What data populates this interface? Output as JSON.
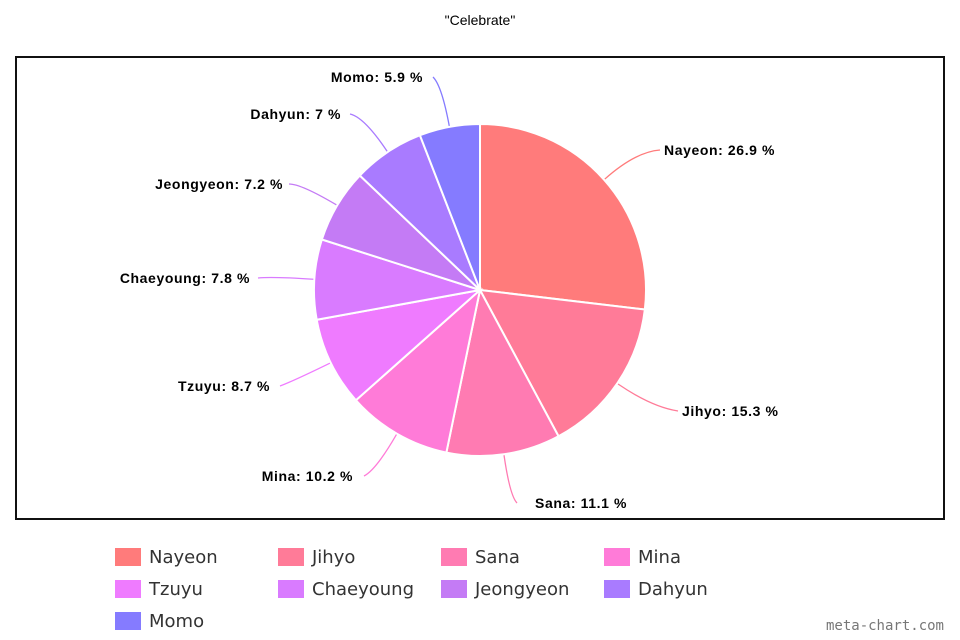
{
  "chart_data": {
    "type": "pie",
    "title": "\"Celebrate\"",
    "slices": [
      {
        "name": "Nayeon",
        "label": "Nayeon: 26.9 %",
        "value": 26.9,
        "color": "#ff7b7b"
      },
      {
        "name": "Jihyo",
        "label": "Jihyo: 15.3 %",
        "value": 15.3,
        "color": "#ff7b98"
      },
      {
        "name": "Sana",
        "label": "Sana: 11.1 %",
        "value": 11.1,
        "color": "#ff7bb2"
      },
      {
        "name": "Mina",
        "label": "Mina: 10.2 %",
        "value": 10.2,
        "color": "#ff7bd8"
      },
      {
        "name": "Tzuyu",
        "label": "Tzuyu: 8.7 %",
        "value": 8.7,
        "color": "#ef7bff"
      },
      {
        "name": "Chaeyoung",
        "label": "Chaeyoung: 7.8 %",
        "value": 7.8,
        "color": "#d97bff"
      },
      {
        "name": "Jeongyeon",
        "label": "Jeongyeon: 7.2 %",
        "value": 7.2,
        "color": "#c47bf5"
      },
      {
        "name": "Dahyun",
        "label": "Dahyun: 7 %",
        "value": 7.0,
        "color": "#a97bff"
      },
      {
        "name": "Momo",
        "label": "Momo: 5.9 %",
        "value": 5.9,
        "color": "#857bff"
      }
    ],
    "legend_position": "bottom"
  },
  "watermark": "meta-chart.com"
}
